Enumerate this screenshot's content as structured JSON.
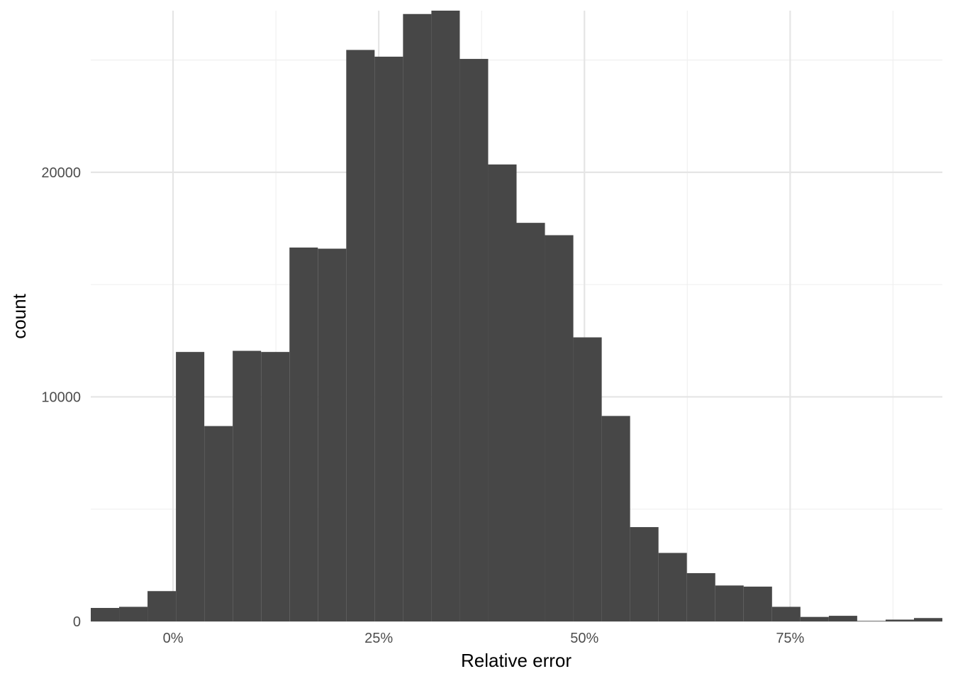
{
  "chart_data": {
    "type": "bar",
    "subtype": "histogram",
    "title": "",
    "xlabel": "Relative error",
    "ylabel": "count",
    "bins": [
      {
        "x0": -0.1,
        "x1": -0.0655,
        "count": 600
      },
      {
        "x0": -0.0655,
        "x1": -0.031,
        "count": 650
      },
      {
        "x0": -0.031,
        "x1": 0.0035,
        "count": 1350
      },
      {
        "x0": 0.0035,
        "x1": 0.038,
        "count": 12000
      },
      {
        "x0": 0.038,
        "x1": 0.0725,
        "count": 8700
      },
      {
        "x0": 0.0725,
        "x1": 0.107,
        "count": 12050
      },
      {
        "x0": 0.107,
        "x1": 0.1415,
        "count": 12000
      },
      {
        "x0": 0.1415,
        "x1": 0.176,
        "count": 16650
      },
      {
        "x0": 0.176,
        "x1": 0.2105,
        "count": 16600
      },
      {
        "x0": 0.2105,
        "x1": 0.245,
        "count": 25450
      },
      {
        "x0": 0.245,
        "x1": 0.2795,
        "count": 25150
      },
      {
        "x0": 0.2795,
        "x1": 0.314,
        "count": 27050
      },
      {
        "x0": 0.314,
        "x1": 0.3485,
        "count": 27200
      },
      {
        "x0": 0.3485,
        "x1": 0.383,
        "count": 25050
      },
      {
        "x0": 0.383,
        "x1": 0.4175,
        "count": 20350
      },
      {
        "x0": 0.4175,
        "x1": 0.452,
        "count": 17750
      },
      {
        "x0": 0.452,
        "x1": 0.4865,
        "count": 17200
      },
      {
        "x0": 0.4865,
        "x1": 0.521,
        "count": 12650
      },
      {
        "x0": 0.521,
        "x1": 0.5555,
        "count": 9150
      },
      {
        "x0": 0.5555,
        "x1": 0.59,
        "count": 4200
      },
      {
        "x0": 0.59,
        "x1": 0.6245,
        "count": 3050
      },
      {
        "x0": 0.6245,
        "x1": 0.659,
        "count": 2150
      },
      {
        "x0": 0.659,
        "x1": 0.6935,
        "count": 1600
      },
      {
        "x0": 0.6935,
        "x1": 0.728,
        "count": 1550
      },
      {
        "x0": 0.728,
        "x1": 0.7625,
        "count": 650
      },
      {
        "x0": 0.7625,
        "x1": 0.797,
        "count": 200
      },
      {
        "x0": 0.797,
        "x1": 0.8315,
        "count": 250
      },
      {
        "x0": 0.8315,
        "x1": 0.866,
        "count": 20
      },
      {
        "x0": 0.866,
        "x1": 0.9005,
        "count": 80
      },
      {
        "x0": 0.9005,
        "x1": 0.935,
        "count": 150
      }
    ],
    "xlim": [
      -0.1,
      0.935
    ],
    "ylim": [
      0,
      27200
    ],
    "x_ticks": [
      {
        "value": 0.0,
        "label": "0%"
      },
      {
        "value": 0.25,
        "label": "25%"
      },
      {
        "value": 0.5,
        "label": "50%"
      },
      {
        "value": 0.75,
        "label": "75%"
      }
    ],
    "x_minor_ticks": [
      0.125,
      0.375,
      0.625,
      0.875
    ],
    "y_ticks": [
      {
        "value": 0,
        "label": "0"
      },
      {
        "value": 10000,
        "label": "10000"
      },
      {
        "value": 20000,
        "label": "20000"
      }
    ],
    "y_minor_ticks": [
      5000,
      15000,
      25000
    ],
    "grid": true,
    "legend": "none",
    "colors": {
      "bar_fill": "#474747",
      "grid_major": "#e5e5e5",
      "grid_minor": "#f0f0f0",
      "tick_text": "#4d4d4d",
      "axis_title": "#000000",
      "background": "#ffffff"
    }
  }
}
